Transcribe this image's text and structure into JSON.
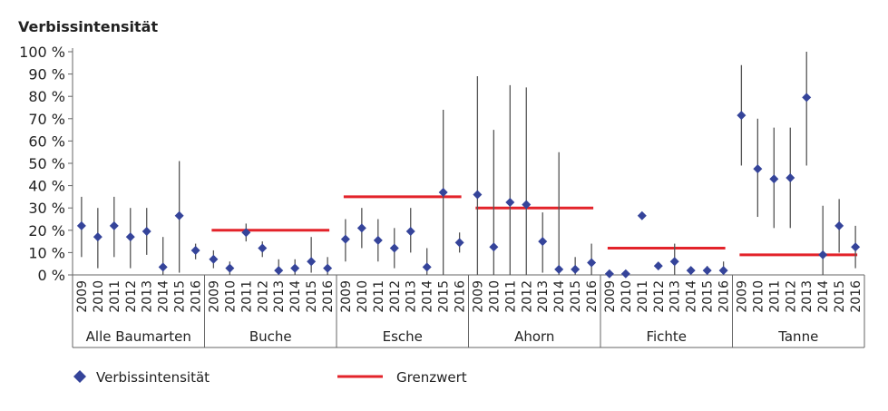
{
  "chart_data": {
    "type": "scatter",
    "title": "Verbissintensität",
    "ylim": [
      0,
      100
    ],
    "yticks": [
      "0 %",
      "10 %",
      "20 %",
      "30 %",
      "40 %",
      "50 %",
      "60 %",
      "70 %",
      "80 %",
      "90 %",
      "100 %"
    ],
    "years": [
      "2009",
      "2010",
      "2011",
      "2012",
      "2013",
      "2014",
      "2015",
      "2016"
    ],
    "groups": [
      {
        "name": "Alle Baumarten",
        "values": [
          22,
          17,
          22,
          17,
          19.5,
          3.5,
          26.5,
          11
        ],
        "errors": [
          [
            8,
            35
          ],
          [
            3,
            30
          ],
          [
            8,
            35
          ],
          [
            3,
            30
          ],
          [
            9,
            30
          ],
          [
            0,
            17
          ],
          [
            1,
            51
          ],
          [
            7,
            14
          ]
        ],
        "grenzwert": null
      },
      {
        "name": "Buche",
        "values": [
          7,
          3,
          19,
          12,
          2,
          3,
          6,
          3
        ],
        "errors": [
          [
            3,
            11
          ],
          [
            0,
            6
          ],
          [
            15,
            23
          ],
          [
            8,
            15
          ],
          [
            0,
            7
          ],
          [
            0,
            7
          ],
          [
            1,
            17
          ],
          [
            0,
            8
          ]
        ],
        "grenzwert": 20
      },
      {
        "name": "Esche",
        "values": [
          16,
          21,
          15.5,
          12,
          19.5,
          3.5,
          37,
          14.5
        ],
        "errors": [
          [
            6,
            25
          ],
          [
            12,
            30
          ],
          [
            6,
            25
          ],
          [
            3,
            21
          ],
          [
            10,
            30
          ],
          [
            0,
            12
          ],
          [
            0,
            74
          ],
          [
            10,
            19
          ]
        ],
        "grenzwert": 35
      },
      {
        "name": "Ahorn",
        "values": [
          36,
          12.5,
          32.5,
          31.5,
          15,
          2.5,
          2.5,
          5.5
        ],
        "errors": [
          [
            0,
            89
          ],
          [
            0,
            65
          ],
          [
            0,
            85
          ],
          [
            0,
            84
          ],
          [
            1,
            28
          ],
          [
            0,
            55
          ],
          [
            0,
            8
          ],
          [
            0,
            14
          ]
        ],
        "grenzwert": 30
      },
      {
        "name": "Fichte",
        "values": [
          0.5,
          0.5,
          26.5,
          4,
          6,
          2,
          2,
          2
        ],
        "errors": [
          null,
          null,
          null,
          null,
          [
            0,
            14
          ],
          null,
          [
            0,
            4
          ],
          [
            0,
            6
          ]
        ],
        "grenzwert": 12
      },
      {
        "name": "Tanne",
        "values": [
          71.5,
          47.5,
          43,
          43.5,
          79.5,
          9,
          22,
          12.5
        ],
        "errors": [
          [
            49,
            94
          ],
          [
            26,
            70
          ],
          [
            21,
            66
          ],
          [
            21,
            66
          ],
          [
            49,
            100
          ],
          [
            0,
            31
          ],
          [
            10,
            34
          ],
          [
            3,
            22
          ]
        ],
        "grenzwert": 9
      }
    ],
    "legend": {
      "placement": "bottom",
      "series_label": "Verbissintensität",
      "line_label": "Grenzwert"
    },
    "colors": {
      "point": "#35449a",
      "grenzwert": "#e3232a",
      "error": "#555555"
    }
  }
}
